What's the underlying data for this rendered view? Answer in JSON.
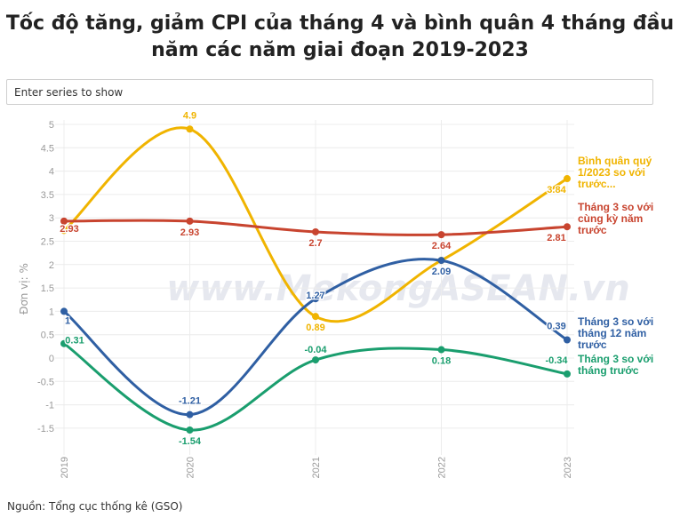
{
  "title_lines": [
    "Tốc độ tăng, giảm CPI của tháng 4 và bình quân 4 tháng đầu",
    "năm các năm giai đoạn 2019-2023"
  ],
  "search": {
    "placeholder": "Enter series to show"
  },
  "watermark": "www.MekongASEAN.vn",
  "source": "Nguồn: Tổng cục thống kê (GSO)",
  "chart_data": {
    "type": "line",
    "title": "Tốc độ tăng, giảm CPI của tháng 4 và bình quân 4 tháng đầu năm các năm giai đoạn 2019-2023",
    "xlabel": "",
    "ylabel": "Đơn vị: %",
    "categories": [
      "2019",
      "2020",
      "2021",
      "2022",
      "2023"
    ],
    "yticks": [
      "5",
      "4.5",
      "4",
      "3.5",
      "3",
      "2.5",
      "2",
      "1.5",
      "1",
      "0.5",
      "0",
      "-0.5",
      "-1",
      "-1.5"
    ],
    "ylim": [
      -1.6,
      5.1
    ],
    "grid": true,
    "series": [
      {
        "name_lines": [
          "Bình quân quý",
          "1/2023 so với",
          "trước..."
        ],
        "color": "#f0b400",
        "values": [
          2.73,
          4.9,
          0.89,
          2.09,
          3.84
        ],
        "labels": [
          "",
          "4.9",
          "0.89",
          "2.09",
          "3.84"
        ]
      },
      {
        "name_lines": [
          "Tháng 3 so với",
          "cùng kỳ năm",
          "trước"
        ],
        "color": "#c8442f",
        "values": [
          2.93,
          2.93,
          2.7,
          2.64,
          2.81
        ],
        "labels": [
          "2.93",
          "2.93",
          "2.7",
          "2.64",
          "2.81"
        ]
      },
      {
        "name_lines": [
          "Tháng 3 so với",
          "tháng 12 năm",
          "trước"
        ],
        "color": "#2f5fa3",
        "values": [
          1.0,
          -1.21,
          1.27,
          2.09,
          0.39
        ],
        "labels": [
          "1",
          "-1.21",
          "1.27",
          "2.09",
          "0.39"
        ]
      },
      {
        "name_lines": [
          "Tháng 3 so với",
          "tháng trước"
        ],
        "color": "#1a9e6e",
        "values": [
          0.31,
          -1.54,
          -0.04,
          0.18,
          -0.34
        ],
        "labels": [
          "0.31",
          "-1.54",
          "-0.04",
          "0.18",
          "-0.34"
        ]
      }
    ]
  }
}
